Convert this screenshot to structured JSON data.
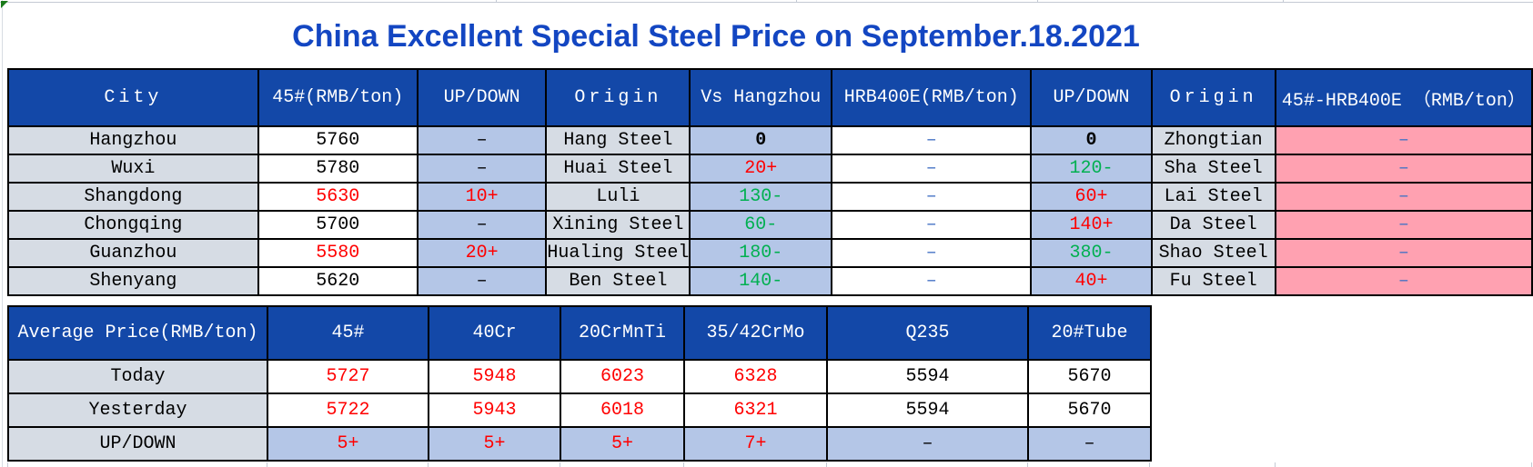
{
  "title": "China Excellent Special Steel Price on September.18.2021",
  "colors": {
    "header_blue": "#1348A8",
    "light_blue": "#B4C6E7",
    "light_gray": "#D6DCE4",
    "pink": "#FFA1B1",
    "red": "#FF0000",
    "green": "#00B050",
    "dash_blue": "#4472C4",
    "title_blue": "#1346C2",
    "border": "#000000"
  },
  "city_table": {
    "headers": [
      "City",
      "45#(RMB/ton)",
      "UP/DOWN",
      "Origin",
      "Vs Hangzhou",
      "HRB400E(RMB/ton)",
      "UP/DOWN",
      "Origin",
      "45#-HRB400E （RMB/ton）"
    ],
    "rows": [
      [
        {
          "t": "Hangzhou"
        },
        {
          "t": "5760"
        },
        {
          "t": "–"
        },
        {
          "t": "Hang Steel"
        },
        {
          "t": "0",
          "b": true
        },
        {
          "t": "–",
          "c": "dash"
        },
        {
          "t": "0",
          "b": true
        },
        {
          "t": "Zhongtian"
        },
        {
          "t": "–",
          "c": "dash"
        }
      ],
      [
        {
          "t": "Wuxi"
        },
        {
          "t": "5780"
        },
        {
          "t": "–"
        },
        {
          "t": "Huai Steel"
        },
        {
          "t": "20+",
          "c": "red"
        },
        {
          "t": "–",
          "c": "dash"
        },
        {
          "t": "120-",
          "c": "green"
        },
        {
          "t": "Sha Steel"
        },
        {
          "t": "–",
          "c": "dash"
        }
      ],
      [
        {
          "t": "Shangdong"
        },
        {
          "t": "5630",
          "c": "red"
        },
        {
          "t": "10+",
          "c": "red"
        },
        {
          "t": "Luli"
        },
        {
          "t": "130-",
          "c": "green"
        },
        {
          "t": "–",
          "c": "dash"
        },
        {
          "t": "60+",
          "c": "red"
        },
        {
          "t": "Lai Steel"
        },
        {
          "t": "–",
          "c": "dash"
        }
      ],
      [
        {
          "t": "Chongqing"
        },
        {
          "t": "5700"
        },
        {
          "t": "–"
        },
        {
          "t": "Xining Steel"
        },
        {
          "t": "60-",
          "c": "green"
        },
        {
          "t": "–",
          "c": "dash"
        },
        {
          "t": "140+",
          "c": "red"
        },
        {
          "t": "Da Steel"
        },
        {
          "t": "–",
          "c": "dash"
        }
      ],
      [
        {
          "t": "Guanzhou"
        },
        {
          "t": "5580",
          "c": "red"
        },
        {
          "t": "20+",
          "c": "red"
        },
        {
          "t": "Hualing Steel"
        },
        {
          "t": "180-",
          "c": "green"
        },
        {
          "t": "–",
          "c": "dash"
        },
        {
          "t": "380-",
          "c": "green"
        },
        {
          "t": "Shao Steel"
        },
        {
          "t": "–",
          "c": "dash"
        }
      ],
      [
        {
          "t": "Shenyang"
        },
        {
          "t": "5620"
        },
        {
          "t": "–"
        },
        {
          "t": "Ben Steel"
        },
        {
          "t": "140-",
          "c": "green"
        },
        {
          "t": "–",
          "c": "dash"
        },
        {
          "t": "40+",
          "c": "red"
        },
        {
          "t": "Fu Steel"
        },
        {
          "t": "–",
          "c": "dash"
        }
      ]
    ]
  },
  "average_table": {
    "headers": [
      "Average Price(RMB/ton)",
      "45#",
      "40Cr",
      "20CrMnTi",
      "35/42CrMo",
      "Q235",
      "20#Tube"
    ],
    "rows": [
      {
        "label": "Today",
        "cells": [
          {
            "t": "5727",
            "c": "red"
          },
          {
            "t": "5948",
            "c": "red"
          },
          {
            "t": "6023",
            "c": "red"
          },
          {
            "t": "6328",
            "c": "red"
          },
          {
            "t": "5594"
          },
          {
            "t": "5670"
          }
        ]
      },
      {
        "label": "Yesterday",
        "cells": [
          {
            "t": "5722",
            "c": "red"
          },
          {
            "t": "5943",
            "c": "red"
          },
          {
            "t": "6018",
            "c": "red"
          },
          {
            "t": "6321",
            "c": "red"
          },
          {
            "t": "5594"
          },
          {
            "t": "5670"
          }
        ]
      },
      {
        "label": "UP/DOWN",
        "cells": [
          {
            "t": "5+",
            "c": "red"
          },
          {
            "t": "5+",
            "c": "red"
          },
          {
            "t": "5+",
            "c": "red"
          },
          {
            "t": "7+",
            "c": "red"
          },
          {
            "t": "–"
          },
          {
            "t": "–"
          }
        ]
      }
    ]
  }
}
